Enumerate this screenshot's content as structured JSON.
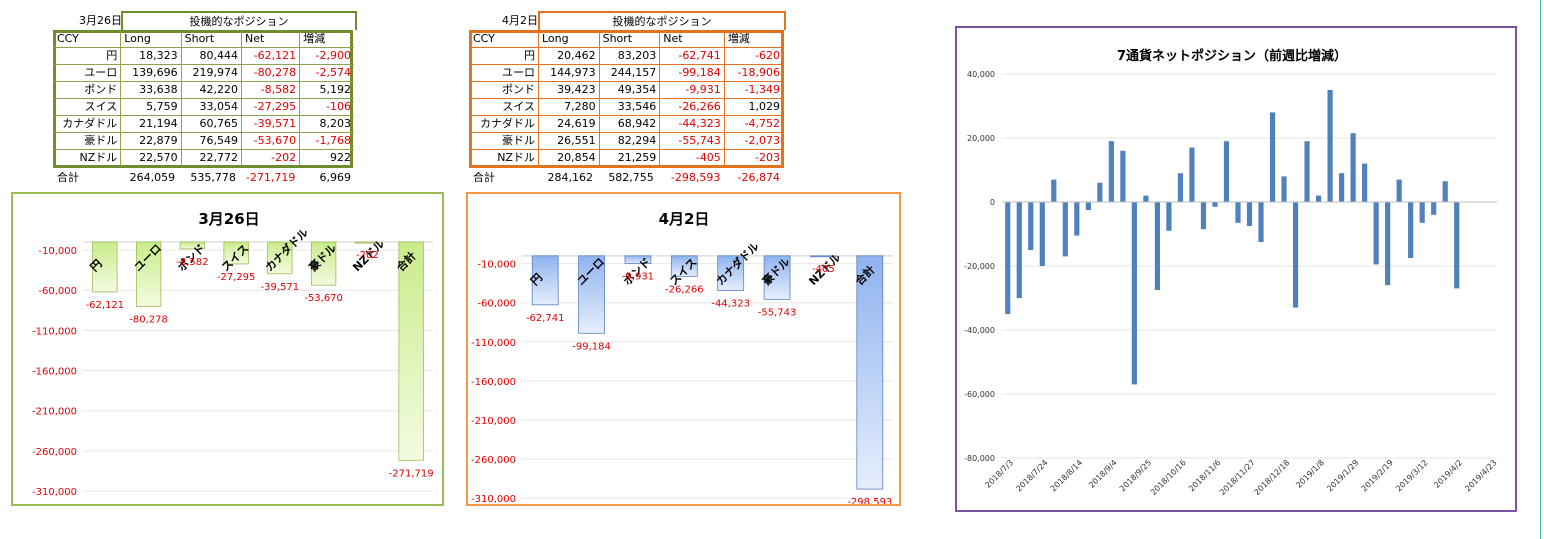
{
  "colors": {
    "green": "#6f8c2f",
    "orange": "#e3741d",
    "purple": "#7a52a3",
    "blue": "#4f81bd",
    "neg": "#e00000"
  },
  "header_columns": [
    "CCY",
    "Long",
    "Short",
    "Net",
    "増減"
  ],
  "table_title": "投機的なポジション",
  "tableA": {
    "date": "3月26日",
    "rows": [
      [
        "円",
        "18,323",
        "80,444",
        "-62,121",
        "-2,900"
      ],
      [
        "ユーロ",
        "139,696",
        "219,974",
        "-80,278",
        "-2,574"
      ],
      [
        "ポンド",
        "33,638",
        "42,220",
        "-8,582",
        "5,192"
      ],
      [
        "スイス",
        "5,759",
        "33,054",
        "-27,295",
        "-106"
      ],
      [
        "カナダドル",
        "21,194",
        "60,765",
        "-39,571",
        "8,203"
      ],
      [
        "豪ドル",
        "22,879",
        "76,549",
        "-53,670",
        "-1,768"
      ],
      [
        "NZドル",
        "22,570",
        "22,772",
        "-202",
        "922"
      ]
    ],
    "total": [
      "合計",
      "264,059",
      "535,778",
      "-271,719",
      "6,969"
    ]
  },
  "tableB": {
    "date": "4月2日",
    "rows": [
      [
        "円",
        "20,462",
        "83,203",
        "-62,741",
        "-620"
      ],
      [
        "ユーロ",
        "144,973",
        "244,157",
        "-99,184",
        "-18,906"
      ],
      [
        "ポンド",
        "39,423",
        "49,354",
        "-9,931",
        "-1,349"
      ],
      [
        "スイス",
        "7,280",
        "33,546",
        "-26,266",
        "1,029"
      ],
      [
        "カナダドル",
        "24,619",
        "68,942",
        "-44,323",
        "-4,752"
      ],
      [
        "豪ドル",
        "26,551",
        "82,294",
        "-55,743",
        "-2,073"
      ],
      [
        "NZドル",
        "20,854",
        "21,259",
        "-405",
        "-203"
      ]
    ],
    "total": [
      "合計",
      "284,162",
      "582,755",
      "-298,593",
      "-26,874"
    ]
  },
  "chart_data": [
    {
      "type": "bar",
      "title": "3月26日",
      "categories": [
        "円",
        "ユーロ",
        "ポンド",
        "スイス",
        "カナダドル",
        "豪ドル",
        "NZドル",
        "合計"
      ],
      "values": [
        -62121,
        -80278,
        -8582,
        -27295,
        -39571,
        -53670,
        -202,
        -271719
      ],
      "data_labels": [
        "-62,121",
        "-80,278",
        "-8,582",
        "-27,295",
        "-39,571",
        "-53,670",
        "-202",
        "-271,719"
      ],
      "ylim": [
        -310000,
        10000
      ],
      "yticks": [
        -10000,
        -60000,
        -110000,
        -160000,
        -210000,
        -260000,
        -310000
      ],
      "ytick_labels": [
        "-10,000",
        "-60,000",
        "-110,000",
        "-160,000",
        "-210,000",
        "-260,000",
        "-310,000"
      ]
    },
    {
      "type": "bar",
      "title": "4月2日",
      "categories": [
        "円",
        "ユーロ",
        "ポンド",
        "スイス",
        "カナダドル",
        "豪ドル",
        "NZドル",
        "合計"
      ],
      "values": [
        -62741,
        -99184,
        -9931,
        -26266,
        -44323,
        -55743,
        -405,
        -298593
      ],
      "data_labels": [
        "-62,741",
        "-99,184",
        "-9,931",
        "-26,266",
        "-44,323",
        "-55,743",
        "-405",
        "-298,593"
      ],
      "ylim": [
        -310000,
        10000
      ],
      "yticks": [
        -10000,
        -60000,
        -110000,
        -160000,
        -210000,
        -260000,
        -310000
      ],
      "ytick_labels": [
        "-10,000",
        "-60,000",
        "-110,000",
        "-160,000",
        "-210,000",
        "-260,000",
        "-310,000"
      ]
    },
    {
      "type": "bar",
      "title": "7通貨ネットポジション（前週比増減）",
      "ylim": [
        -80000,
        40000
      ],
      "yticks": [
        40000,
        20000,
        0,
        -20000,
        -40000,
        -60000,
        -80000
      ],
      "ytick_labels": [
        "40,000",
        "20,000",
        "0",
        "-20,000",
        "-40,000",
        "-60,000",
        "-80,000"
      ],
      "xtick_labels": [
        "2018/7/3",
        "2018/7/24",
        "2018/8/14",
        "2018/9/4",
        "2018/9/25",
        "2018/10/16",
        "2018/11/6",
        "2018/11/27",
        "2018/12/18",
        "2019/1/8",
        "2019/1/29",
        "2019/2/19",
        "2019/3/12",
        "2019/4/2",
        "2019/4/23"
      ],
      "values": [
        -35000,
        -30000,
        -15000,
        -20000,
        7000,
        -17000,
        -10500,
        -2500,
        6000,
        19000,
        16000,
        -57000,
        2000,
        -27500,
        -9000,
        9000,
        17000,
        -8500,
        -1500,
        19000,
        -6500,
        -7500,
        -12500,
        28000,
        8000,
        -33000,
        19000,
        2000,
        35000,
        9000,
        21500,
        12000,
        -19500,
        -26000,
        7000,
        -17500,
        -6500,
        -4000,
        6500,
        -27000,
        0,
        0,
        0
      ]
    }
  ]
}
